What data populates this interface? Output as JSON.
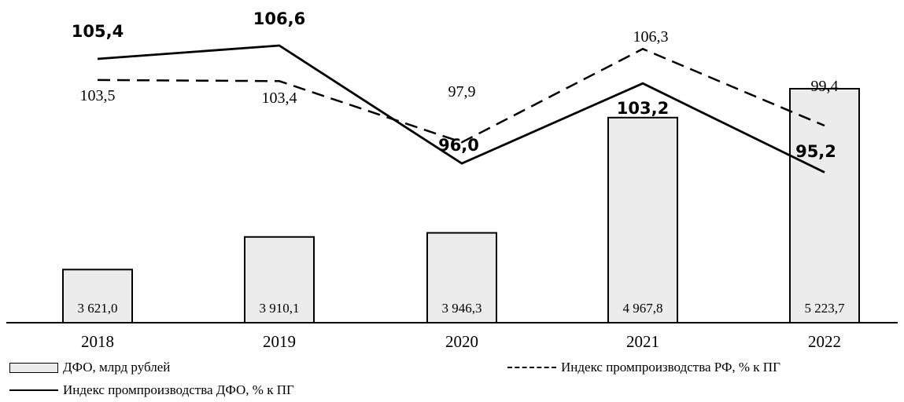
{
  "chart_data": {
    "type": "bar",
    "categories": [
      "2018",
      "2019",
      "2020",
      "2021",
      "2022"
    ],
    "series": [
      {
        "name": "ДФО, млрд рублей",
        "kind": "bar",
        "values": [
          3621.0,
          3910.1,
          3946.3,
          4967.8,
          5223.7
        ],
        "labels": [
          "3 621,0",
          "3 910,1",
          "3 946,3",
          "4 967,8",
          "5 223,7"
        ],
        "color": "#ececec"
      },
      {
        "name": "Индекс промпроизводства РФ, % к ПГ",
        "kind": "line",
        "style": "dashed",
        "values": [
          103.5,
          103.4,
          97.9,
          106.3,
          99.4
        ],
        "labels": [
          "103,5",
          "103,4",
          "97,9",
          "106,3",
          "99,4"
        ],
        "color": "#000000"
      },
      {
        "name": "Индекс промпроизводства ДФО, % к ПГ",
        "kind": "line",
        "style": "solid",
        "values": [
          105.4,
          106.6,
          96.0,
          103.2,
          95.2
        ],
        "labels": [
          "105,4",
          "106,6",
          "96,0",
          "103,2",
          "95,2"
        ],
        "color": "#000000"
      }
    ],
    "title": "",
    "xlabel": "",
    "ylabel": "",
    "legend_position": "bottom",
    "grid": false
  }
}
